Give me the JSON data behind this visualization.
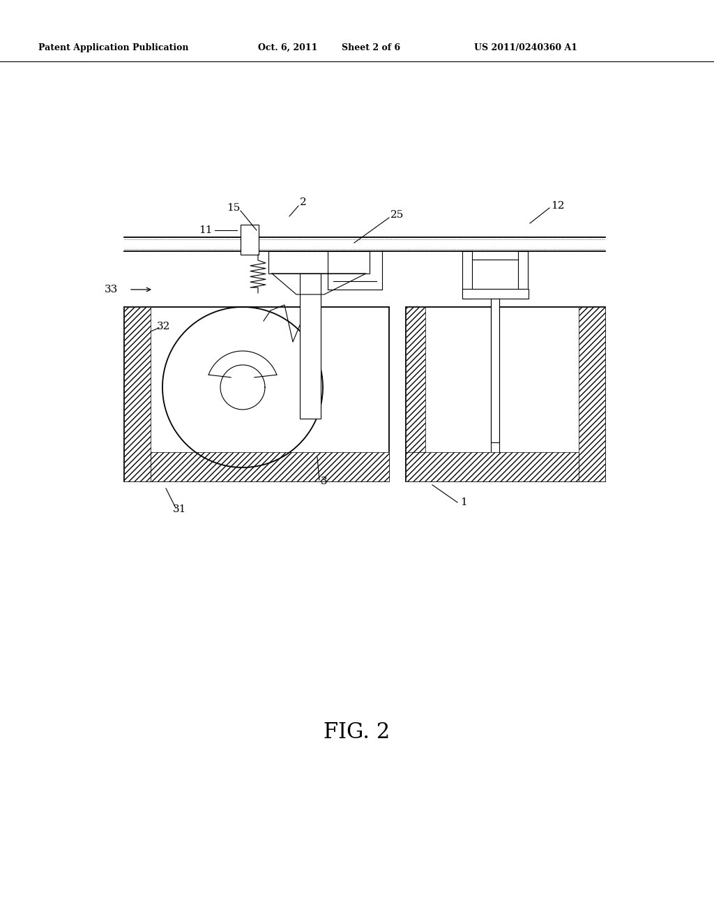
{
  "bg_color": "#ffffff",
  "line_color": "#000000",
  "header_text": {
    "left": "Patent Application Publication",
    "center_date": "Oct. 6, 2011",
    "center_sheet": "Sheet 2 of 6",
    "right": "US 2011/0240360 A1"
  },
  "figure_label": "FIG. 2"
}
